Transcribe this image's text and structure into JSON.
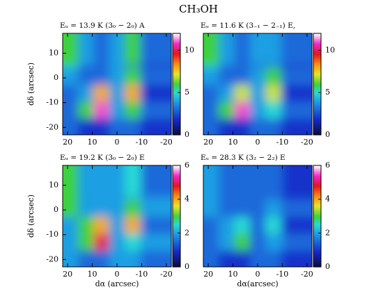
{
  "title": "CH₃OH",
  "chart_data": [
    {
      "type": "heatmap",
      "title": "Eᵤ = 13.9 K (3₀ − 2₀) A",
      "ylabel": "dδ (arcsec)",
      "xlim": [
        22,
        -22
      ],
      "ylim": [
        -23,
        18
      ],
      "xticks": [
        20,
        10,
        0,
        -10,
        -20
      ],
      "yticks": [
        -20,
        -10,
        0,
        10
      ],
      "clim": [
        0,
        12
      ],
      "cticks": [
        0,
        5,
        10
      ],
      "x": [
        18.9,
        12.6,
        6.3,
        0,
        -6.3,
        -12.6,
        -18.9
      ],
      "y": [
        -19.6,
        -12.8,
        -5.9,
        0.9,
        7.8,
        14.6
      ],
      "z": [
        [
          3,
          2,
          2,
          3,
          3,
          2,
          2
        ],
        [
          3,
          6,
          11,
          4,
          6,
          4,
          3
        ],
        [
          3,
          4,
          8,
          4,
          8,
          3,
          2
        ],
        [
          4,
          3,
          3,
          4,
          6,
          3,
          3
        ],
        [
          5,
          3,
          3,
          4,
          3,
          3,
          2
        ],
        [
          6,
          4,
          3,
          4,
          6,
          3,
          3
        ]
      ]
    },
    {
      "type": "heatmap",
      "title": "Eᵤ = 11.6 K (3₋₁ − 2₋₁) E,",
      "xlim": [
        22,
        -22
      ],
      "ylim": [
        -23,
        18
      ],
      "xticks": [
        20,
        10,
        0,
        -10,
        -20
      ],
      "clim": [
        0,
        12
      ],
      "cticks": [
        0,
        5,
        10
      ],
      "x": [
        18.9,
        12.6,
        6.3,
        0,
        -6.3,
        -12.6,
        -18.9
      ],
      "y": [
        -19.6,
        -12.8,
        -5.9,
        0.9,
        7.8,
        14.6
      ],
      "z": [
        [
          3,
          2,
          2,
          3,
          3,
          2,
          2
        ],
        [
          3,
          6,
          11,
          4,
          5,
          4,
          3
        ],
        [
          3,
          4,
          7,
          4,
          7,
          3,
          2
        ],
        [
          4,
          3,
          3,
          4,
          6,
          3,
          3
        ],
        [
          5,
          3,
          3,
          3,
          3,
          3,
          2
        ],
        [
          6,
          4,
          3,
          4,
          4,
          3,
          3
        ]
      ]
    },
    {
      "type": "heatmap",
      "title": "Eᵤ = 19.2 K (3₀ − 2₀) E",
      "xlabel": "dα (arcsec)",
      "ylabel": "dδ (arcsec)",
      "xlim": [
        22,
        -22
      ],
      "ylim": [
        -23,
        18
      ],
      "xticks": [
        20,
        10,
        0,
        -10,
        -20
      ],
      "yticks": [
        -20,
        -10,
        0,
        10
      ],
      "clim": [
        0,
        6
      ],
      "cticks": [
        0,
        2,
        4,
        6
      ],
      "x": [
        18.9,
        12.6,
        6.3,
        0,
        -6.3,
        -12.6,
        -18.9
      ],
      "y": [
        -19.6,
        -12.8,
        -5.9,
        0.9,
        7.8,
        14.6
      ],
      "z": [
        [
          2,
          1.5,
          1.5,
          2,
          2,
          1.5,
          1.5
        ],
        [
          2,
          3,
          5,
          2,
          2.5,
          2,
          2
        ],
        [
          2,
          3,
          4,
          2,
          4,
          2,
          1.5
        ],
        [
          3,
          2,
          2,
          2,
          3,
          2,
          2
        ],
        [
          3,
          2,
          2,
          2,
          2,
          2,
          2
        ],
        [
          3,
          2,
          2,
          2,
          2.5,
          2,
          1.5
        ]
      ]
    },
    {
      "type": "heatmap",
      "title": "Eᵤ = 28.3 K (3₂ − 2₂) E",
      "xlabel": "dα(arcsec)",
      "xlim": [
        22,
        -22
      ],
      "ylim": [
        -23,
        18
      ],
      "xticks": [
        20,
        10,
        0,
        -10,
        -20
      ],
      "clim": [
        0,
        6
      ],
      "cticks": [
        0,
        2,
        4,
        6
      ],
      "x": [
        18.9,
        12.6,
        6.3,
        0,
        -6.3,
        -12.6,
        -18.9
      ],
      "y": [
        -19.6,
        -12.8,
        -5.9,
        0.9,
        7.8,
        14.6
      ],
      "z": [
        [
          1.5,
          1,
          1,
          1.5,
          1.5,
          1,
          1
        ],
        [
          1.5,
          2,
          3,
          1.5,
          2,
          2,
          1.5
        ],
        [
          1.5,
          2,
          2.5,
          1.5,
          2.5,
          1.5,
          1
        ],
        [
          2,
          1.5,
          1.5,
          1.5,
          2,
          1.5,
          1.5
        ],
        [
          2,
          1.5,
          1.5,
          1.5,
          1.5,
          1.5,
          1
        ],
        [
          2,
          1.5,
          1.5,
          1.5,
          1.5,
          1.5,
          1
        ]
      ]
    }
  ]
}
